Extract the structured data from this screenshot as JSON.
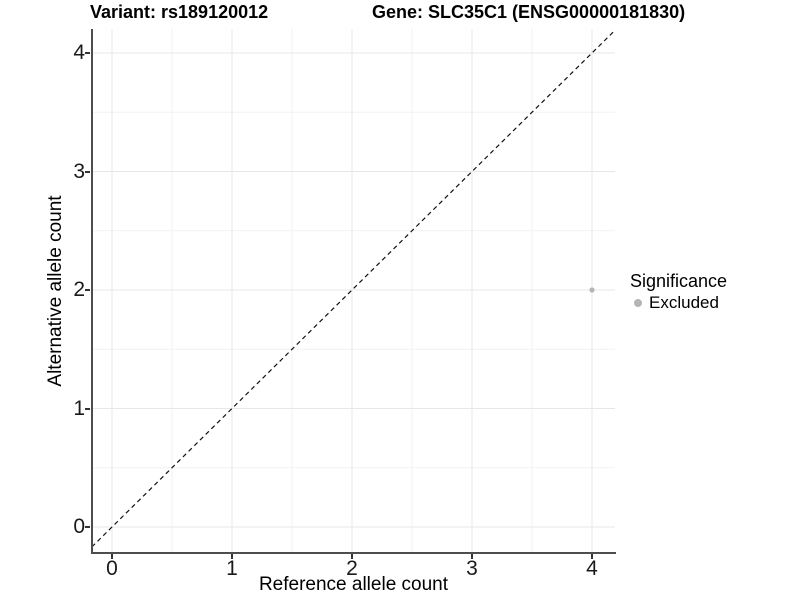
{
  "titles": {
    "variant": "Variant: rs189120012",
    "gene": "Gene: SLC35C1 (ENSG00000181830)"
  },
  "legend": {
    "title": "Significance",
    "items": [
      {
        "label": "Excluded",
        "color": "#b5b5b5"
      }
    ]
  },
  "chart_data": {
    "type": "scatter",
    "title_left": "Variant: rs189120012",
    "title_right": "Gene: SLC35C1 (ENSG00000181830)",
    "xlabel": "Reference allele count",
    "ylabel": "Alternative allele count",
    "xlim": [
      -0.21,
      4.21
    ],
    "ylim": [
      -0.22,
      4.2
    ],
    "x_ticks": [
      0,
      1,
      2,
      3,
      4
    ],
    "x_tick_labels": [
      "0",
      "1",
      "2",
      "3",
      "4"
    ],
    "x_minor_ticks": [
      0.5,
      1.5,
      2.5,
      3.5
    ],
    "y_ticks": [
      0,
      1,
      2,
      3,
      4
    ],
    "y_tick_labels": [
      "0",
      "1",
      "2",
      "3",
      "4"
    ],
    "y_minor_ticks": [
      0.5,
      1.5,
      2.5,
      3.5
    ],
    "grid": true,
    "legend_position": "right",
    "series": [
      {
        "name": "Excluded",
        "color": "#b5b5b5",
        "points": [
          {
            "x": 4,
            "y": 2
          }
        ]
      }
    ],
    "reference_line": {
      "slope": 1,
      "intercept": 0,
      "style": "dashed",
      "color": "#111111"
    },
    "colors": {
      "grid_major": "#e7e7e7",
      "grid_minor": "#f2f2f2",
      "axis_line": "#4d4d4d",
      "tick_mark": "#333333",
      "background": "#ffffff"
    }
  }
}
